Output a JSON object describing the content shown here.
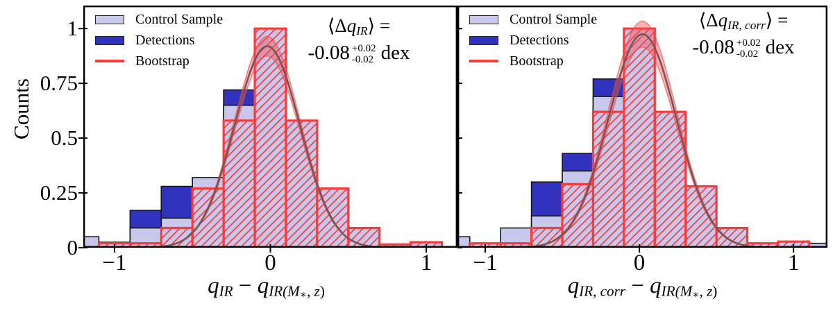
{
  "colors": {
    "control_fill": "#c7c8ec",
    "detections_fill": "#3133be",
    "bootstrap_red": "#fa3b3b",
    "hatch_red": "#fb3d3d",
    "band_fill": "rgba(242,82,92,0.45)",
    "band_edge": "rgba(248,60,60,0.55)",
    "curve_line": "#7a5555",
    "bar_edge": "#161616",
    "axis": "#000000"
  },
  "y_axis": {
    "title": "Counts",
    "ticks": [
      {
        "value": 0,
        "label": "0"
      },
      {
        "value": 0.25,
        "label": "0.25"
      },
      {
        "value": 0.5,
        "label": "0.5"
      },
      {
        "value": 0.75,
        "label": "0.75"
      },
      {
        "value": 1,
        "label": "1"
      }
    ]
  },
  "legend": {
    "items": [
      {
        "label": "Control Sample",
        "swatch": "control"
      },
      {
        "label": "Detections",
        "swatch": "detections"
      },
      {
        "label": "Bootstrap",
        "swatch": "line"
      }
    ]
  },
  "chart_data": [
    {
      "type": "bar",
      "panel": "left",
      "xlim": [
        -1.2,
        1.2
      ],
      "ylim": [
        0,
        1.105
      ],
      "bin_width": 0.2,
      "x_ticks": [
        {
          "value": -1,
          "label": "−1"
        },
        {
          "value": 0,
          "label": "0"
        },
        {
          "value": 1,
          "label": "1"
        }
      ],
      "xlabel_parts": [
        {
          "t": "q",
          "it": true
        },
        {
          "t": "IR",
          "s": 1,
          "it": true
        },
        {
          "t": " − "
        },
        {
          "t": "q",
          "it": true
        },
        {
          "t": "IR(",
          "s": 1,
          "it": true
        },
        {
          "t": "M",
          "s": 1,
          "it": true
        },
        {
          "t": "∗",
          "s": 2
        },
        {
          "t": ", ",
          "s": 1
        },
        {
          "t": "z",
          "s": 1,
          "it": true
        },
        {
          "t": ")",
          "s": 1
        }
      ],
      "series": {
        "control_sample": [
          [
            -1.3,
            0.05
          ],
          [
            -1.1,
            0.025
          ],
          [
            -0.9,
            0.09
          ],
          [
            -0.7,
            0.135
          ],
          [
            -0.5,
            0.32
          ],
          [
            -0.3,
            0.65
          ],
          [
            -0.1,
            1.0
          ],
          [
            0.1,
            0.58
          ],
          [
            0.3,
            0.27
          ],
          [
            0.5,
            0.09
          ],
          [
            0.7,
            0.015
          ],
          [
            0.9,
            0.025
          ]
        ],
        "detections": [
          [
            -0.9,
            0.17
          ],
          [
            -0.7,
            0.28
          ],
          [
            -0.3,
            0.72
          ]
        ],
        "bootstrap_hist": [
          [
            -1.1,
            0.02
          ],
          [
            -0.9,
            0.02
          ],
          [
            -0.7,
            0.09
          ],
          [
            -0.5,
            0.27
          ],
          [
            -0.3,
            0.58
          ],
          [
            -0.1,
            1.0
          ],
          [
            0.1,
            0.58
          ],
          [
            0.3,
            0.27
          ],
          [
            0.5,
            0.09
          ],
          [
            0.7,
            0.015
          ],
          [
            0.9,
            0.025
          ]
        ]
      },
      "gaussian": {
        "mean": -0.02,
        "sigma": 0.21,
        "amp": 0.92,
        "amp_hi": 0.965,
        "amp_lo": 0.875
      },
      "annotation": {
        "line1_parts": [
          {
            "t": "⟨"
          },
          {
            "t": "Δ"
          },
          {
            "t": "q",
            "it": true
          },
          {
            "t": "IR",
            "s": 1,
            "it": true
          },
          {
            "t": "⟩ ="
          }
        ],
        "value": "-0.08",
        "err_plus": "+0.02",
        "err_minus": "-0.02",
        "unit": "dex"
      }
    },
    {
      "type": "bar",
      "panel": "right",
      "xlim": [
        -1.18,
        1.22
      ],
      "ylim": [
        0,
        1.105
      ],
      "bin_width": 0.2,
      "x_ticks": [
        {
          "value": -1,
          "label": "−1"
        },
        {
          "value": 0,
          "label": "0"
        },
        {
          "value": 1,
          "label": "1"
        }
      ],
      "xlabel_parts": [
        {
          "t": "q",
          "it": true
        },
        {
          "t": "IR, corr",
          "s": 1,
          "it": true
        },
        {
          "t": " − "
        },
        {
          "t": "q",
          "it": true
        },
        {
          "t": "IR(",
          "s": 1,
          "it": true
        },
        {
          "t": "M",
          "s": 1,
          "it": true
        },
        {
          "t": "∗",
          "s": 2
        },
        {
          "t": ", ",
          "s": 1
        },
        {
          "t": "z",
          "s": 1,
          "it": true
        },
        {
          "t": ")",
          "s": 1
        }
      ],
      "series": {
        "control_sample": [
          [
            -1.3,
            0.05
          ],
          [
            -1.1,
            0.02
          ],
          [
            -0.9,
            0.09
          ],
          [
            -0.7,
            0.145
          ],
          [
            -0.5,
            0.35
          ],
          [
            -0.3,
            0.69
          ],
          [
            -0.1,
            1.0
          ],
          [
            0.1,
            0.62
          ],
          [
            0.3,
            0.28
          ],
          [
            0.5,
            0.09
          ],
          [
            0.7,
            0.02
          ],
          [
            0.9,
            0.028
          ],
          [
            1.1,
            0.02
          ]
        ],
        "detections": [
          [
            -0.7,
            0.3
          ],
          [
            -0.5,
            0.43
          ],
          [
            -0.3,
            0.77
          ]
        ],
        "bootstrap_hist": [
          [
            -1.1,
            0.02
          ],
          [
            -0.9,
            0.02
          ],
          [
            -0.7,
            0.09
          ],
          [
            -0.5,
            0.29
          ],
          [
            -0.3,
            0.62
          ],
          [
            -0.1,
            1.0
          ],
          [
            0.1,
            0.62
          ],
          [
            0.3,
            0.28
          ],
          [
            0.5,
            0.09
          ],
          [
            0.7,
            0.02
          ],
          [
            0.9,
            0.028
          ]
        ]
      },
      "gaussian": {
        "mean": 0.02,
        "sigma": 0.22,
        "amp": 0.975,
        "amp_hi": 1.035,
        "amp_lo": 0.915
      },
      "annotation": {
        "line1_parts": [
          {
            "t": "⟨"
          },
          {
            "t": "Δ"
          },
          {
            "t": "q",
            "it": true
          },
          {
            "t": "IR, corr",
            "s": 1,
            "it": true
          },
          {
            "t": "⟩ ="
          }
        ],
        "value": "-0.08",
        "err_plus": "+0.02",
        "err_minus": "-0.02",
        "unit": "dex"
      }
    }
  ]
}
